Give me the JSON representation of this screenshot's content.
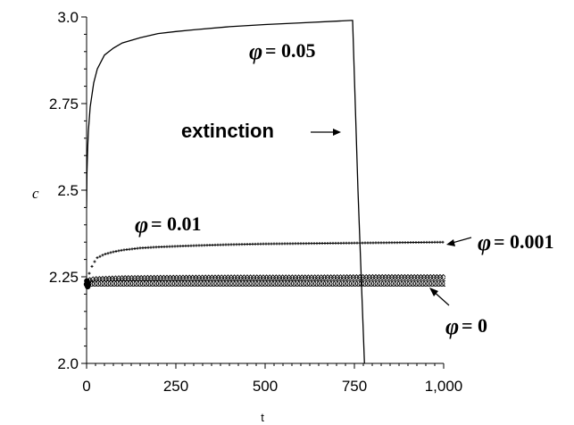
{
  "chart_data": {
    "type": "line",
    "xlabel": "t",
    "ylabel": "c",
    "xlim": [
      0,
      1000
    ],
    "ylim": [
      2.0,
      3.0
    ],
    "x_ticks": [
      0,
      250,
      500,
      750,
      1000
    ],
    "x_tick_labels": [
      "0",
      "250",
      "500",
      "750",
      "1,000"
    ],
    "y_ticks": [
      2.0,
      2.25,
      2.5,
      2.75,
      3.0
    ],
    "y_tick_labels": [
      "2.0",
      "2.25",
      "2.5",
      "2.75",
      "3.0"
    ],
    "grid": false,
    "series": [
      {
        "name": "φ= 0.05",
        "style": "solid",
        "x": [
          0,
          1,
          3,
          5,
          10,
          20,
          30,
          50,
          75,
          100,
          150,
          200,
          250,
          300,
          400,
          500,
          600,
          700,
          740,
          745,
          760,
          780
        ],
        "values": [
          2.45,
          2.55,
          2.62,
          2.67,
          2.74,
          2.81,
          2.85,
          2.89,
          2.91,
          2.925,
          2.94,
          2.952,
          2.958,
          2.963,
          2.972,
          2.978,
          2.983,
          2.988,
          2.99,
          2.99,
          2.5,
          1.95
        ]
      },
      {
        "name": "φ= 0.01",
        "style": "plus-markers",
        "x": [
          0,
          5,
          10,
          20,
          30,
          50,
          75,
          100,
          150,
          200,
          300,
          400,
          500,
          600,
          700,
          800,
          900,
          1000
        ],
        "values": [
          2.23,
          2.25,
          2.27,
          2.29,
          2.305,
          2.315,
          2.322,
          2.327,
          2.333,
          2.336,
          2.34,
          2.343,
          2.345,
          2.346,
          2.347,
          2.348,
          2.349,
          2.35
        ]
      },
      {
        "name": "φ= 0.001",
        "style": "diamond-markers",
        "x": [
          0,
          20,
          100,
          200,
          400,
          600,
          800,
          1000
        ],
        "values": [
          2.235,
          2.24,
          2.243,
          2.244,
          2.245,
          2.245,
          2.246,
          2.246
        ]
      },
      {
        "name": "φ= 0",
        "style": "circle-markers",
        "x": [
          0,
          100,
          200,
          400,
          600,
          800,
          1000
        ],
        "values": [
          2.233,
          2.233,
          2.233,
          2.233,
          2.233,
          2.233,
          2.233
        ]
      }
    ],
    "annotations": {
      "phi_symbol": "φ",
      "phi005_value": "= 0.05",
      "phi001_value": "= 0.01",
      "phi0001_value": "= 0.001",
      "phi0_value": "= 0",
      "extinction_label": "extinction"
    }
  }
}
